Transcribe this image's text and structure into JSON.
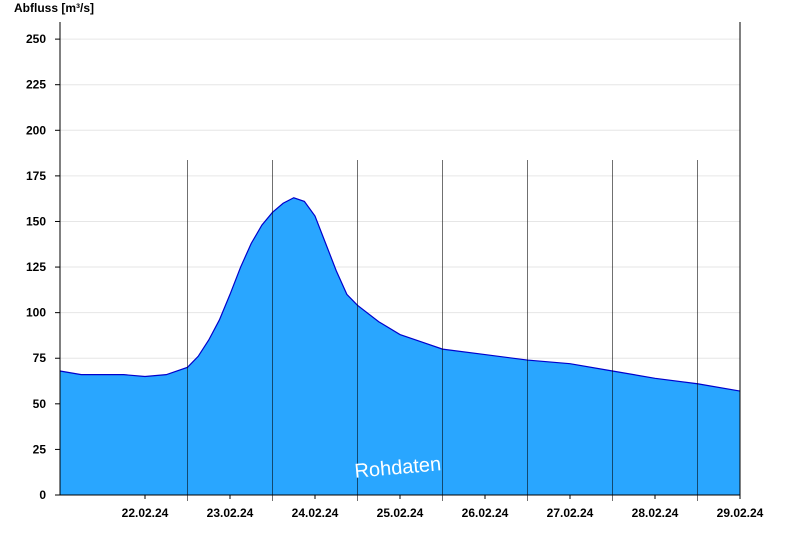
{
  "chart_data": {
    "type": "area",
    "ylabel": "Abfluss [m³/s]",
    "xlabel": "",
    "title": "",
    "watermark": "Rohdaten",
    "ylim": [
      0,
      255
    ],
    "yticks": [
      0,
      25,
      50,
      75,
      100,
      125,
      150,
      175,
      200,
      225,
      250
    ],
    "x_start": "21.02.24 12:00",
    "x_end": "29.02.24 12:00",
    "day_ticks": [
      "22.02.24",
      "23.02.24",
      "24.02.24",
      "25.02.24",
      "26.02.24",
      "27.02.24",
      "28.02.24",
      "29.02.24"
    ],
    "day_boundaries": [
      "23.02.24 00:00",
      "24.02.24 00:00",
      "25.02.24 00:00",
      "26.02.24 00:00",
      "27.02.24 00:00",
      "28.02.24 00:00",
      "29.02.24 00:00"
    ],
    "grid": true,
    "fill_color": "#29a6ff",
    "line_color": "#0000cc",
    "series": [
      {
        "x": [
          "21.02.24 12:00",
          "21.02.24 18:00",
          "22.02.24 00:00",
          "22.02.24 06:00",
          "22.02.24 12:00",
          "22.02.24 18:00",
          "23.02.24 00:00",
          "23.02.24 03:00",
          "23.02.24 06:00",
          "23.02.24 09:00",
          "23.02.24 12:00",
          "23.02.24 15:00",
          "23.02.24 18:00",
          "23.02.24 21:00",
          "24.02.24 00:00",
          "24.02.24 03:00",
          "24.02.24 06:00",
          "24.02.24 09:00",
          "24.02.24 12:00",
          "24.02.24 15:00",
          "24.02.24 18:00",
          "24.02.24 21:00",
          "25.02.24 00:00",
          "25.02.24 06:00",
          "25.02.24 12:00",
          "25.02.24 18:00",
          "26.02.24 00:00",
          "26.02.24 12:00",
          "27.02.24 00:00",
          "27.02.24 12:00",
          "28.02.24 00:00",
          "28.02.24 12:00",
          "29.02.24 00:00",
          "29.02.24 12:00"
        ],
        "values": [
          68,
          66,
          66,
          66,
          65,
          66,
          70,
          76,
          85,
          96,
          110,
          125,
          138,
          148,
          155,
          160,
          163,
          161,
          153,
          138,
          123,
          110,
          104,
          95,
          88,
          84,
          80,
          77,
          74,
          72,
          68,
          64,
          61,
          57
        ]
      }
    ]
  }
}
